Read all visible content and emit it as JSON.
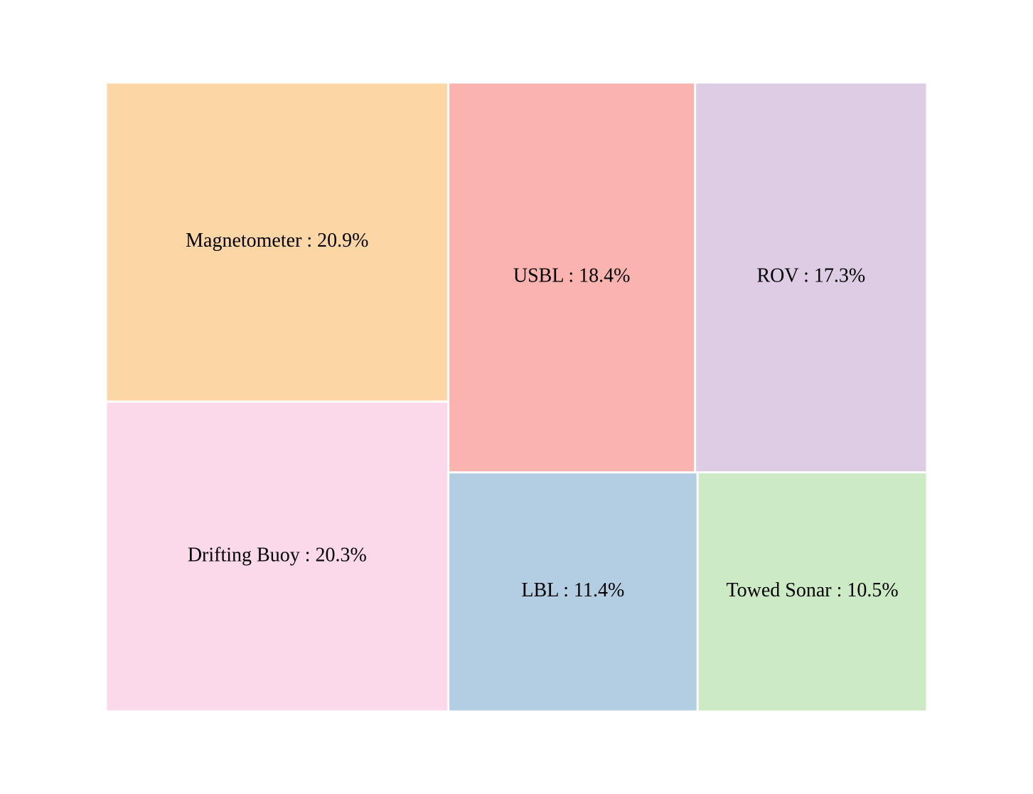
{
  "chart_data": {
    "type": "treemap",
    "title": "",
    "separator": " : ",
    "items": [
      {
        "label": "Magnetometer",
        "value": 20.9,
        "display": "20.9%",
        "color": "#fdd6a5"
      },
      {
        "label": "Drifting Buoy",
        "value": 20.3,
        "display": "20.3%",
        "color": "#fbd8ea"
      },
      {
        "label": "USBL",
        "value": 18.4,
        "display": "18.4%",
        "color": "#fab3ae"
      },
      {
        "label": "ROV",
        "value": 17.3,
        "display": "17.3%",
        "color": "#decbe4"
      },
      {
        "label": "LBL",
        "value": 11.4,
        "display": "11.4%",
        "color": "#b3cde2"
      },
      {
        "label": "Towed Sonar",
        "value": 10.5,
        "display": "10.5%",
        "color": "#cceac4"
      }
    ]
  }
}
